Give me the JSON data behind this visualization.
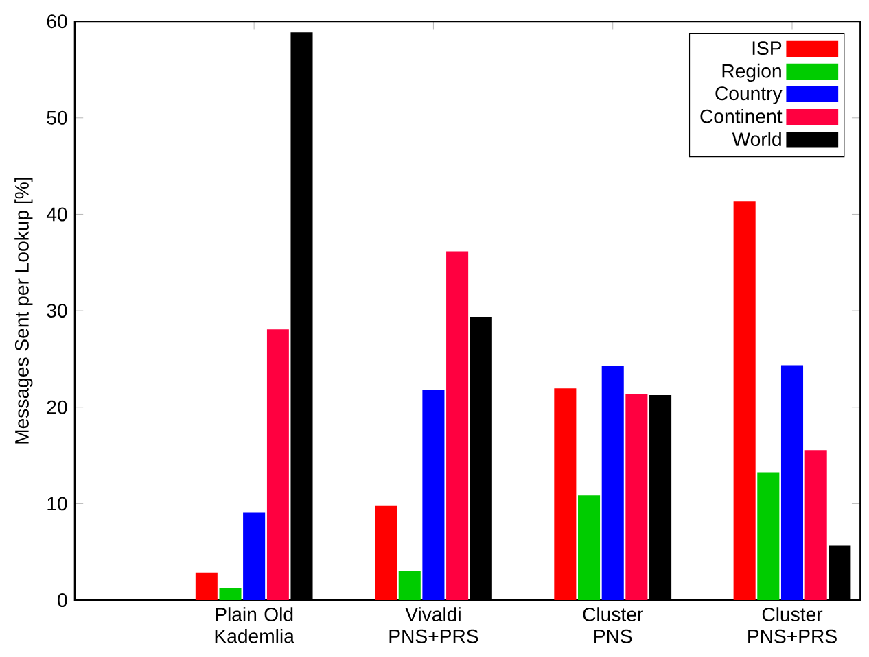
{
  "chart_data": {
    "type": "bar",
    "ylabel": "Messages Sent per Lookup [%]",
    "categories": [
      "Plain Old Kademlia",
      "Vivaldi PNS+PRS",
      "Cluster PNS",
      "Cluster PNS+PRS"
    ],
    "series": [
      {
        "name": "ISP",
        "color": "#ff0000",
        "values": [
          2.8,
          9.7,
          21.9,
          41.3
        ]
      },
      {
        "name": "Region",
        "color": "#00cc00",
        "values": [
          1.2,
          3.0,
          10.8,
          13.2
        ]
      },
      {
        "name": "Country",
        "color": "#0000ff",
        "values": [
          9.0,
          21.7,
          24.2,
          24.3
        ]
      },
      {
        "name": "Continent",
        "color": "#ff0040",
        "values": [
          28.0,
          36.1,
          21.3,
          15.5
        ]
      },
      {
        "name": "World",
        "color": "#000000",
        "values": [
          58.8,
          29.3,
          21.2,
          5.6
        ]
      }
    ],
    "ylim": [
      0,
      60
    ],
    "yticks": [
      0,
      10,
      20,
      30,
      40,
      50,
      60
    ],
    "legend": "top right",
    "grid": false
  }
}
